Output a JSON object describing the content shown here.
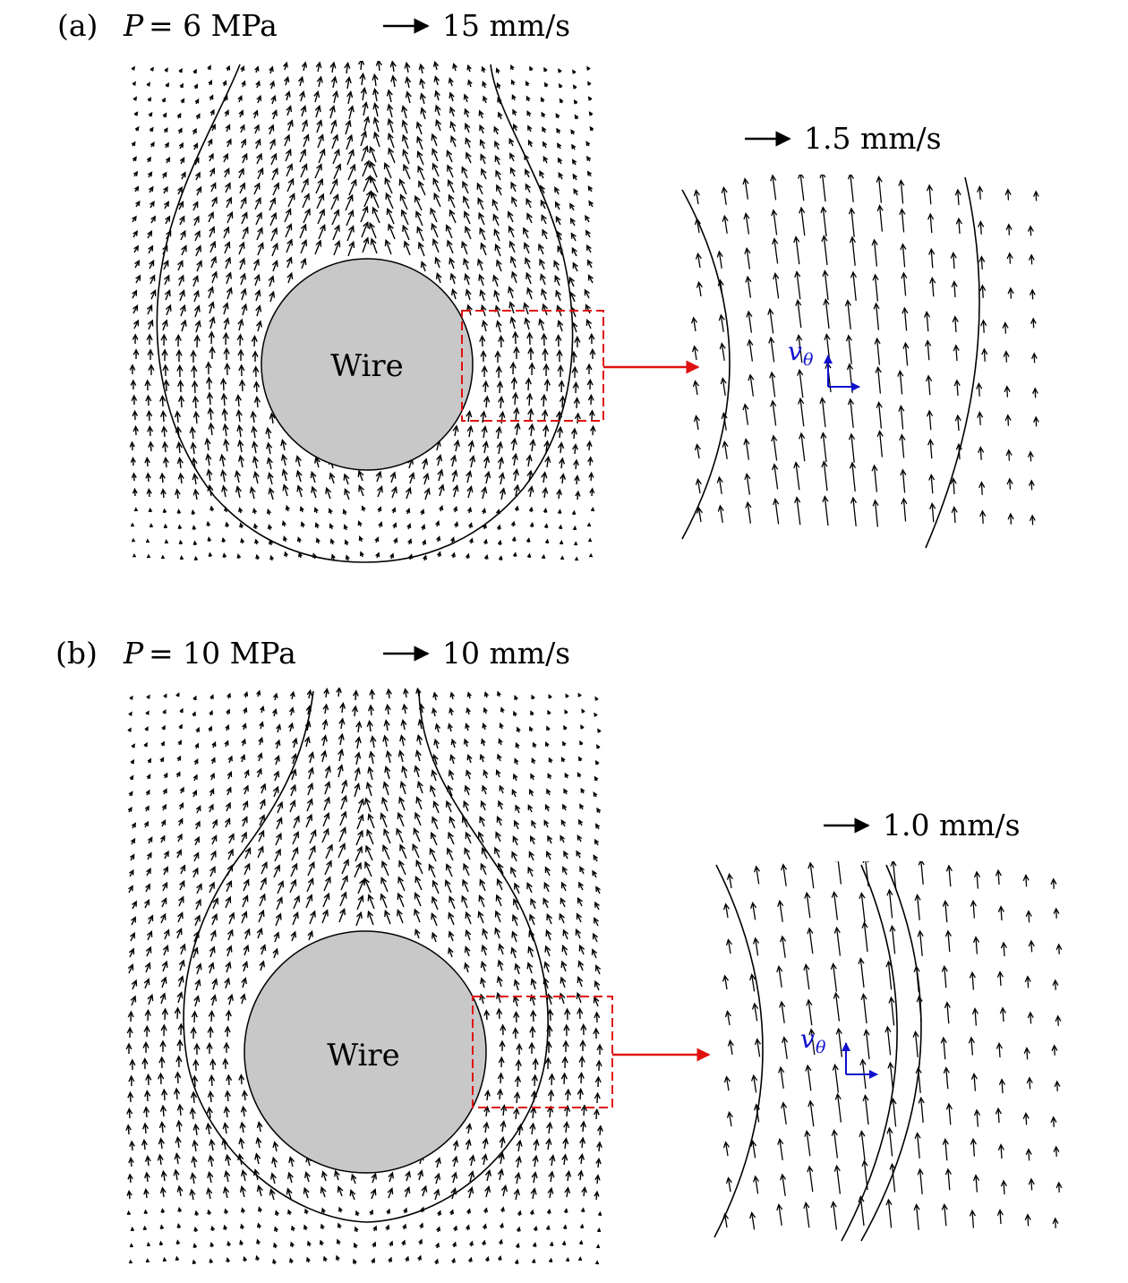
{
  "panels": [
    {
      "label": "(a)",
      "pressure_symbol": "P",
      "pressure_value": "= 6 MPa",
      "scale_label": "15 mm/s",
      "zoom_scale_label": "1.5 mm/s",
      "wire_label": "Wire",
      "vtheta_symbol": "v",
      "vtheta_subscript": "θ"
    },
    {
      "label": "(b)",
      "pressure_symbol": "P",
      "pressure_value": "= 10 MPa",
      "scale_label": "10 mm/s",
      "zoom_scale_label": "1.0 mm/s",
      "wire_label": "Wire",
      "vtheta_symbol": "v",
      "vtheta_subscript": "θ"
    }
  ],
  "colors": {
    "wire_fill": "#c8c8c8",
    "inset_box": "#e01010",
    "pointer_arrow": "#e01010",
    "local_axes": "#1010d0",
    "vectors": "#000000"
  }
}
